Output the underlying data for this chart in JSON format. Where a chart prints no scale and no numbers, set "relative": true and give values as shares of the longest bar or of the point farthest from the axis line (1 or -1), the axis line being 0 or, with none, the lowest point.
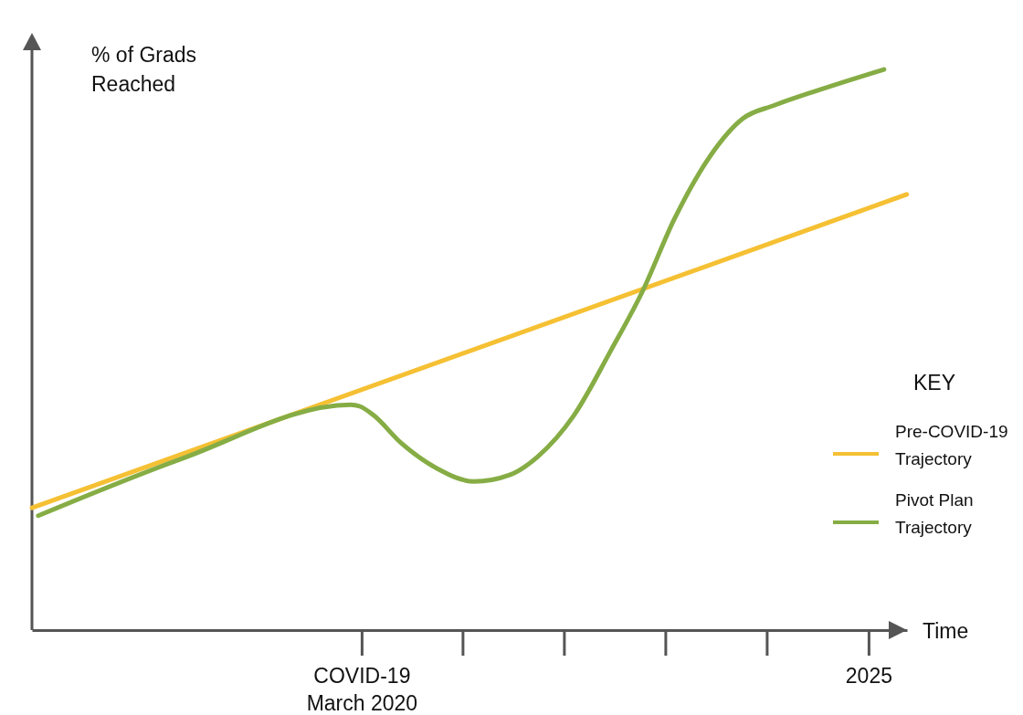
{
  "chart_data": {
    "type": "line",
    "relative": true,
    "ylabel": "% of Grads\nReached",
    "xlabel": "Time",
    "legend_title": "KEY",
    "legend": "right",
    "marker": "none",
    "line_style": "solid",
    "xlim": [
      "2017-01-07",
      "2025-05-15"
    ],
    "xticks": [
      {
        "value": "2020-03",
        "label": "COVID-19\nMarch 2020"
      },
      {
        "value": "2025",
        "label": "2025"
      }
    ],
    "series": [
      {
        "name": "Pre-COVID-19\nTrajectory",
        "color": "#f5c033",
        "x": [
          "2017-01-07",
          "2025-05-14"
        ],
        "values": [
          0.218,
          0.777
        ]
      },
      {
        "name": "Pivot Plan\nTrajectory",
        "color": "#86ad45",
        "x": [
          "2017-01-29",
          "2018-06-15",
          "2020-01-23",
          "2020-02-24",
          "2020-04-12",
          "2020-07-16",
          "2020-11-20",
          "2021-03-28",
          "2021-08-01",
          "2021-11-04",
          "2022-03-11",
          "2022-07-16",
          "2022-11-04",
          "2023-02-24",
          "2023-07-01",
          "2023-10-20",
          "2024-02-08",
          "2024-07-16",
          "2025-02-24"
        ],
        "values": [
          0.204,
          0.306,
          0.402,
          0.399,
          0.383,
          0.334,
          0.288,
          0.265,
          0.277,
          0.309,
          0.383,
          0.497,
          0.603,
          0.733,
          0.847,
          0.912,
          0.936,
          0.964,
          1
        ]
      }
    ]
  }
}
